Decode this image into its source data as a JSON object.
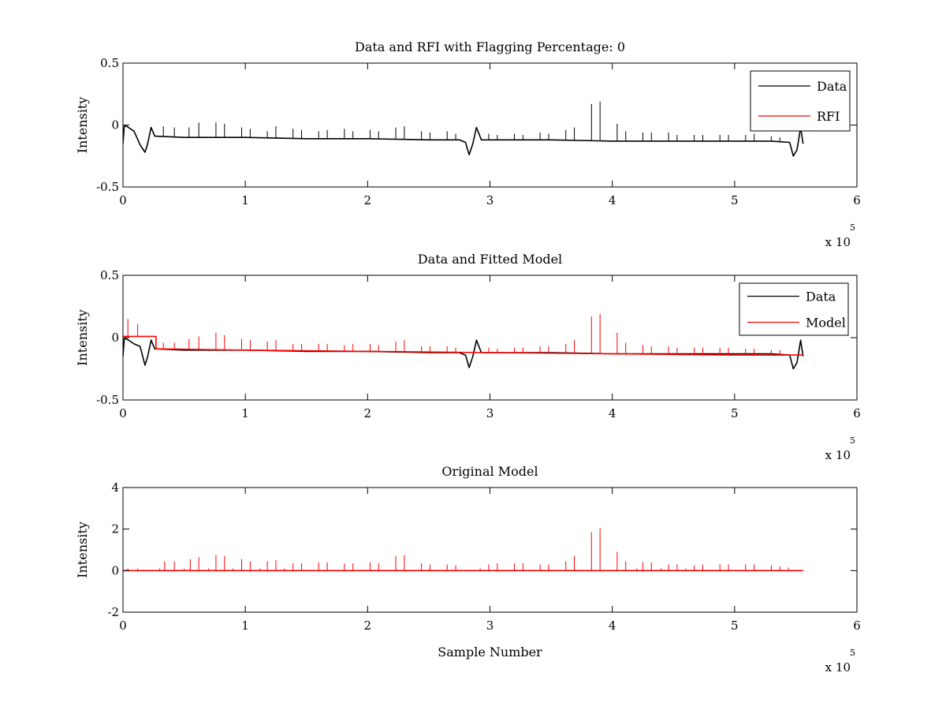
{
  "chart_data": [
    {
      "type": "line",
      "title": "Data and RFI with Flagging Percentage: 0",
      "xlabel": "",
      "ylabel": "Intensity",
      "xlim": [
        0,
        6
      ],
      "ylim": [
        -0.5,
        0.5
      ],
      "x_ticks": [
        "0",
        "1",
        "2",
        "3",
        "4",
        "5",
        "6"
      ],
      "y_ticks": [
        "0.5",
        "0",
        "-0.5"
      ],
      "x_multiplier": "x 10",
      "x_multiplier_exp": "5",
      "legend_position": "top-right",
      "series": [
        {
          "name": "Data",
          "color": "#000000",
          "x": [
            0,
            0.01,
            0.03,
            0.09,
            0.14,
            0.18,
            0.2,
            0.23,
            0.26,
            0.5,
            1.0,
            1.5,
            2.0,
            2.5,
            2.75,
            2.8,
            2.83,
            2.86,
            2.89,
            2.93,
            3.0,
            3.5,
            4.0,
            4.5,
            5.0,
            5.3,
            5.45,
            5.48,
            5.51,
            5.54,
            5.56
          ],
          "y": [
            -0.15,
            -0.01,
            -0.01,
            -0.05,
            -0.16,
            -0.22,
            -0.16,
            -0.02,
            -0.09,
            -0.1,
            -0.1,
            -0.11,
            -0.11,
            -0.12,
            -0.12,
            -0.14,
            -0.24,
            -0.15,
            -0.02,
            -0.12,
            -0.12,
            -0.12,
            -0.13,
            -0.13,
            -0.13,
            -0.13,
            -0.14,
            -0.25,
            -0.2,
            -0.02,
            -0.15
          ],
          "spikes": [
            {
              "x": 0.33,
              "y": -0.01
            },
            {
              "x": 0.42,
              "y": -0.02
            },
            {
              "x": 0.54,
              "y": -0.02
            },
            {
              "x": 0.62,
              "y": 0.02
            },
            {
              "x": 0.76,
              "y": 0.02
            },
            {
              "x": 0.83,
              "y": 0.01
            },
            {
              "x": 0.97,
              "y": -0.02
            },
            {
              "x": 1.04,
              "y": -0.03
            },
            {
              "x": 1.18,
              "y": -0.05
            },
            {
              "x": 1.25,
              "y": -0.01
            },
            {
              "x": 1.39,
              "y": -0.03
            },
            {
              "x": 1.46,
              "y": -0.04
            },
            {
              "x": 1.6,
              "y": -0.05
            },
            {
              "x": 1.67,
              "y": -0.04
            },
            {
              "x": 1.81,
              "y": -0.03
            },
            {
              "x": 1.88,
              "y": -0.05
            },
            {
              "x": 2.02,
              "y": -0.04
            },
            {
              "x": 2.09,
              "y": -0.05
            },
            {
              "x": 2.23,
              "y": -0.02
            },
            {
              "x": 2.3,
              "y": -0.01
            },
            {
              "x": 2.44,
              "y": -0.05
            },
            {
              "x": 2.51,
              "y": -0.06
            },
            {
              "x": 2.65,
              "y": -0.05
            },
            {
              "x": 2.72,
              "y": -0.07
            },
            {
              "x": 2.99,
              "y": -0.07
            },
            {
              "x": 3.06,
              "y": -0.08
            },
            {
              "x": 3.2,
              "y": -0.07
            },
            {
              "x": 3.27,
              "y": -0.08
            },
            {
              "x": 3.41,
              "y": -0.06
            },
            {
              "x": 3.48,
              "y": -0.07
            },
            {
              "x": 3.62,
              "y": -0.04
            },
            {
              "x": 3.69,
              "y": -0.02
            },
            {
              "x": 3.83,
              "y": 0.17
            },
            {
              "x": 3.9,
              "y": 0.19
            },
            {
              "x": 4.04,
              "y": 0.01
            },
            {
              "x": 4.11,
              "y": -0.05
            },
            {
              "x": 4.25,
              "y": -0.06
            },
            {
              "x": 4.32,
              "y": -0.06
            },
            {
              "x": 4.46,
              "y": -0.06
            },
            {
              "x": 4.53,
              "y": -0.08
            },
            {
              "x": 4.67,
              "y": -0.08
            },
            {
              "x": 4.74,
              "y": -0.08
            },
            {
              "x": 4.88,
              "y": -0.08
            },
            {
              "x": 4.95,
              "y": -0.08
            },
            {
              "x": 5.09,
              "y": -0.08
            },
            {
              "x": 5.16,
              "y": -0.07
            },
            {
              "x": 5.3,
              "y": -0.09
            },
            {
              "x": 5.37,
              "y": -0.1
            }
          ]
        },
        {
          "name": "RFI",
          "color": "#ff0000",
          "x": [],
          "y": []
        }
      ]
    },
    {
      "type": "line",
      "title": "Data and Fitted Model",
      "xlabel": "",
      "ylabel": "Intensity",
      "xlim": [
        0,
        6
      ],
      "ylim": [
        -0.5,
        0.5
      ],
      "x_ticks": [
        "0",
        "1",
        "2",
        "3",
        "4",
        "5",
        "6"
      ],
      "y_ticks": [
        "0.5",
        "0",
        "-0.5"
      ],
      "x_multiplier": "x 10",
      "x_multiplier_exp": "5",
      "legend_position": "top-right",
      "series": [
        {
          "name": "Data",
          "color": "#000000",
          "x": [
            0,
            0.01,
            0.03,
            0.09,
            0.14,
            0.18,
            0.2,
            0.23,
            0.26,
            0.5,
            1.0,
            1.5,
            2.0,
            2.5,
            2.75,
            2.8,
            2.83,
            2.86,
            2.89,
            2.93,
            3.0,
            3.5,
            4.0,
            4.5,
            5.0,
            5.3,
            5.45,
            5.48,
            5.51,
            5.54,
            5.56
          ],
          "y": [
            -0.15,
            -0.01,
            -0.01,
            -0.05,
            -0.07,
            -0.22,
            -0.16,
            -0.02,
            -0.09,
            -0.1,
            -0.1,
            -0.11,
            -0.11,
            -0.12,
            -0.12,
            -0.14,
            -0.24,
            -0.15,
            -0.02,
            -0.12,
            -0.12,
            -0.12,
            -0.13,
            -0.13,
            -0.13,
            -0.13,
            -0.14,
            -0.25,
            -0.2,
            -0.02,
            -0.15
          ]
        },
        {
          "name": "Model",
          "color": "#ff0000",
          "x": [
            0,
            0.27,
            0.27,
            1.0,
            2.0,
            3.0,
            4.0,
            5.0,
            5.56
          ],
          "y": [
            0.01,
            0.01,
            -0.09,
            -0.1,
            -0.11,
            -0.12,
            -0.13,
            -0.14,
            -0.14
          ],
          "spikes": [
            {
              "x": 0.04,
              "y": 0.15
            },
            {
              "x": 0.12,
              "y": 0.11
            },
            {
              "x": 0.33,
              "y": -0.04
            },
            {
              "x": 0.42,
              "y": -0.04
            },
            {
              "x": 0.54,
              "y": -0.01
            },
            {
              "x": 0.62,
              "y": 0.01
            },
            {
              "x": 0.76,
              "y": 0.04
            },
            {
              "x": 0.83,
              "y": 0.02
            },
            {
              "x": 0.97,
              "y": -0.01
            },
            {
              "x": 1.04,
              "y": -0.02
            },
            {
              "x": 1.18,
              "y": -0.03
            },
            {
              "x": 1.25,
              "y": -0.02
            },
            {
              "x": 1.39,
              "y": -0.05
            },
            {
              "x": 1.46,
              "y": -0.05
            },
            {
              "x": 1.6,
              "y": -0.05
            },
            {
              "x": 1.67,
              "y": -0.05
            },
            {
              "x": 1.81,
              "y": -0.06
            },
            {
              "x": 1.88,
              "y": -0.05
            },
            {
              "x": 2.02,
              "y": -0.05
            },
            {
              "x": 2.09,
              "y": -0.06
            },
            {
              "x": 2.23,
              "y": -0.03
            },
            {
              "x": 2.3,
              "y": -0.02
            },
            {
              "x": 2.44,
              "y": -0.07
            },
            {
              "x": 2.51,
              "y": -0.07
            },
            {
              "x": 2.65,
              "y": -0.07
            },
            {
              "x": 2.72,
              "y": -0.08
            },
            {
              "x": 2.99,
              "y": -0.08
            },
            {
              "x": 3.06,
              "y": -0.09
            },
            {
              "x": 3.2,
              "y": -0.08
            },
            {
              "x": 3.27,
              "y": -0.08
            },
            {
              "x": 3.41,
              "y": -0.07
            },
            {
              "x": 3.48,
              "y": -0.07
            },
            {
              "x": 3.62,
              "y": -0.05
            },
            {
              "x": 3.69,
              "y": -0.02
            },
            {
              "x": 3.83,
              "y": 0.17
            },
            {
              "x": 3.9,
              "y": 0.19
            },
            {
              "x": 4.04,
              "y": 0.04
            },
            {
              "x": 4.11,
              "y": -0.04
            },
            {
              "x": 4.25,
              "y": -0.06
            },
            {
              "x": 4.32,
              "y": -0.07
            },
            {
              "x": 4.46,
              "y": -0.07
            },
            {
              "x": 4.53,
              "y": -0.08
            },
            {
              "x": 4.67,
              "y": -0.08
            },
            {
              "x": 4.74,
              "y": -0.08
            },
            {
              "x": 4.88,
              "y": -0.08
            },
            {
              "x": 4.95,
              "y": -0.08
            },
            {
              "x": 5.09,
              "y": -0.09
            },
            {
              "x": 5.16,
              "y": -0.09
            },
            {
              "x": 5.3,
              "y": -0.1
            },
            {
              "x": 5.37,
              "y": -0.1
            }
          ]
        }
      ]
    },
    {
      "type": "line",
      "title": "Original Model",
      "xlabel": "Sample Number",
      "ylabel": "Intensity",
      "xlim": [
        0,
        6
      ],
      "ylim": [
        -2,
        4
      ],
      "x_ticks": [
        "0",
        "1",
        "2",
        "3",
        "4",
        "5",
        "6"
      ],
      "y_ticks": [
        "4",
        "2",
        "0",
        "-2"
      ],
      "x_multiplier": "x 10",
      "x_multiplier_exp": "5",
      "series": [
        {
          "color": "#ff0000",
          "x": [
            0,
            5.56
          ],
          "y": [
            0,
            0
          ],
          "spikes": [
            {
              "x": 0.04,
              "y": 0.1
            },
            {
              "x": 0.12,
              "y": 0.1
            },
            {
              "x": 0.3,
              "y": 0.1
            },
            {
              "x": 0.34,
              "y": 0.45
            },
            {
              "x": 0.42,
              "y": 0.45
            },
            {
              "x": 0.5,
              "y": 0.1
            },
            {
              "x": 0.55,
              "y": 0.55
            },
            {
              "x": 0.62,
              "y": 0.65
            },
            {
              "x": 0.7,
              "y": 0.1
            },
            {
              "x": 0.76,
              "y": 0.75
            },
            {
              "x": 0.83,
              "y": 0.7
            },
            {
              "x": 0.9,
              "y": 0.1
            },
            {
              "x": 0.97,
              "y": 0.55
            },
            {
              "x": 1.04,
              "y": 0.45
            },
            {
              "x": 1.12,
              "y": 0.1
            },
            {
              "x": 1.18,
              "y": 0.45
            },
            {
              "x": 1.25,
              "y": 0.5
            },
            {
              "x": 1.32,
              "y": 0.1
            },
            {
              "x": 1.39,
              "y": 0.35
            },
            {
              "x": 1.46,
              "y": 0.35
            },
            {
              "x": 1.6,
              "y": 0.4
            },
            {
              "x": 1.67,
              "y": 0.4
            },
            {
              "x": 1.81,
              "y": 0.35
            },
            {
              "x": 1.88,
              "y": 0.35
            },
            {
              "x": 2.02,
              "y": 0.4
            },
            {
              "x": 2.09,
              "y": 0.35
            },
            {
              "x": 2.23,
              "y": 0.7
            },
            {
              "x": 2.3,
              "y": 0.75
            },
            {
              "x": 2.44,
              "y": 0.35
            },
            {
              "x": 2.51,
              "y": 0.3
            },
            {
              "x": 2.65,
              "y": 0.3
            },
            {
              "x": 2.72,
              "y": 0.25
            },
            {
              "x": 2.92,
              "y": 0.1
            },
            {
              "x": 2.99,
              "y": 0.3
            },
            {
              "x": 3.06,
              "y": 0.35
            },
            {
              "x": 3.2,
              "y": 0.35
            },
            {
              "x": 3.27,
              "y": 0.35
            },
            {
              "x": 3.41,
              "y": 0.3
            },
            {
              "x": 3.48,
              "y": 0.3
            },
            {
              "x": 3.62,
              "y": 0.45
            },
            {
              "x": 3.69,
              "y": 0.7
            },
            {
              "x": 3.83,
              "y": 1.85
            },
            {
              "x": 3.9,
              "y": 2.05
            },
            {
              "x": 4.04,
              "y": 0.9
            },
            {
              "x": 4.11,
              "y": 0.45
            },
            {
              "x": 4.2,
              "y": 0.1
            },
            {
              "x": 4.25,
              "y": 0.4
            },
            {
              "x": 4.32,
              "y": 0.4
            },
            {
              "x": 4.4,
              "y": 0.1
            },
            {
              "x": 4.46,
              "y": 0.3
            },
            {
              "x": 4.53,
              "y": 0.3
            },
            {
              "x": 4.6,
              "y": 0.1
            },
            {
              "x": 4.67,
              "y": 0.25
            },
            {
              "x": 4.74,
              "y": 0.3
            },
            {
              "x": 4.88,
              "y": 0.3
            },
            {
              "x": 4.95,
              "y": 0.3
            },
            {
              "x": 5.09,
              "y": 0.3
            },
            {
              "x": 5.16,
              "y": 0.3
            },
            {
              "x": 5.3,
              "y": 0.25
            },
            {
              "x": 5.37,
              "y": 0.2
            },
            {
              "x": 5.44,
              "y": 0.15
            }
          ]
        }
      ]
    }
  ]
}
